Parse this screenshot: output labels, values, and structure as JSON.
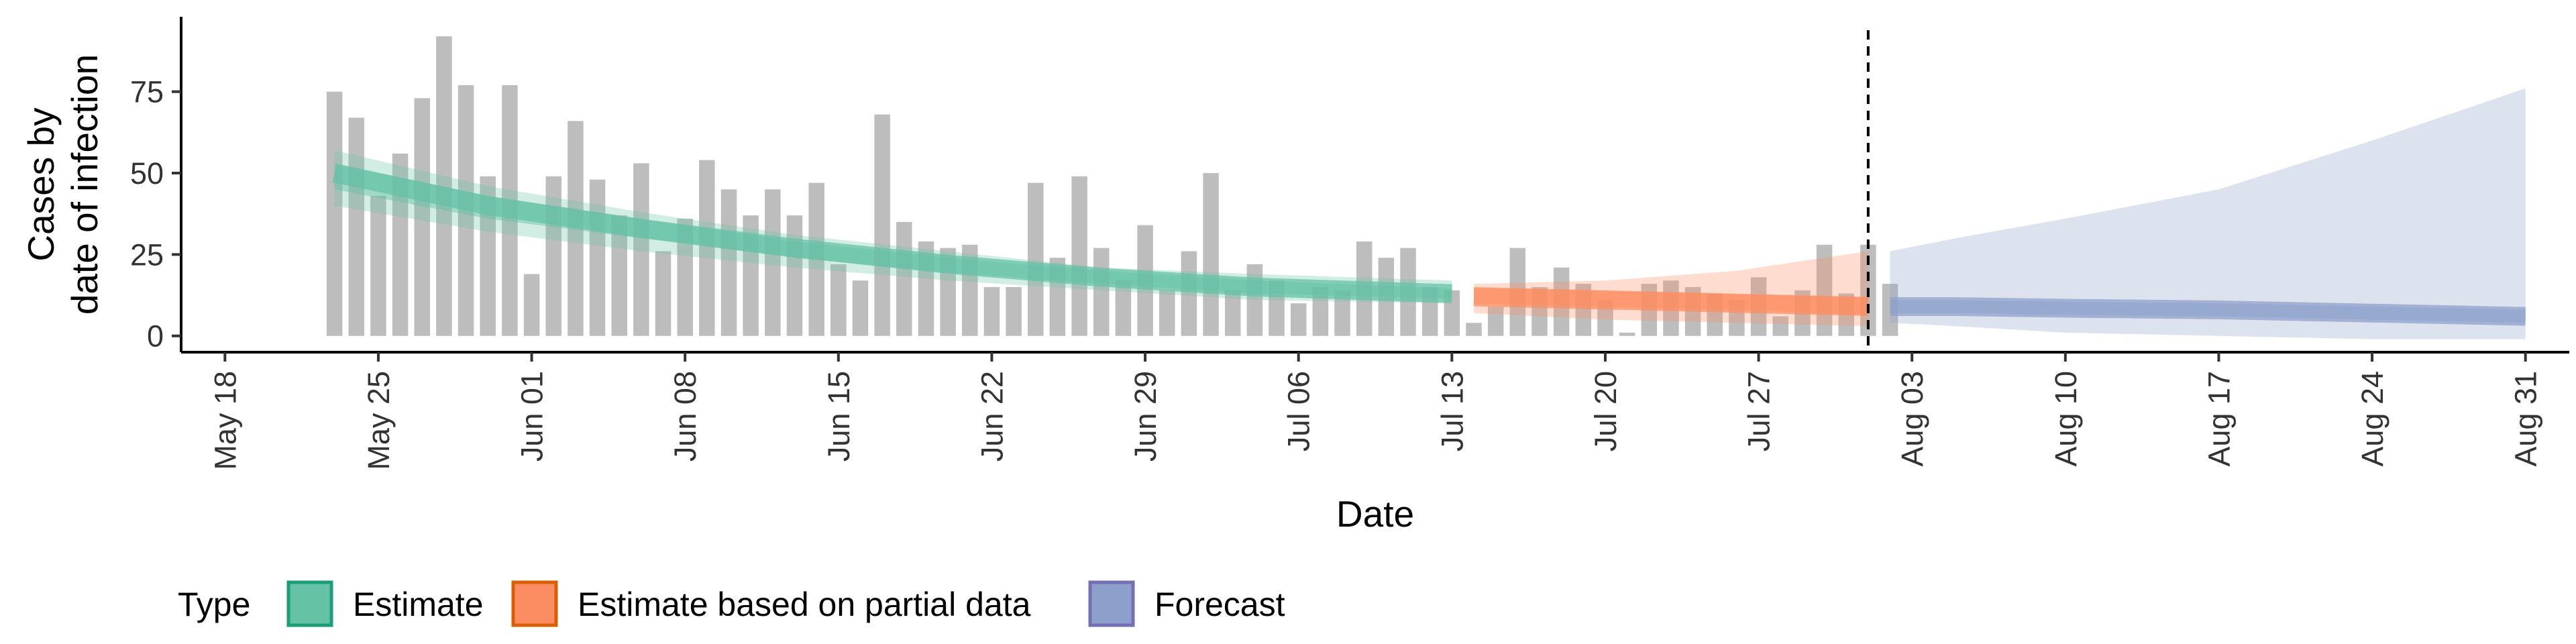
{
  "chart_data": {
    "type": "bar",
    "title": "",
    "xlabel": "Date",
    "ylabel_lines": [
      "Cases by",
      "date of infection"
    ],
    "x_type": "date",
    "xlim": [
      "2020-05-16",
      "2020-09-02"
    ],
    "ylim": [
      -5,
      98
    ],
    "x_ticks": [
      {
        "date": "2020-05-18",
        "label": "May 18"
      },
      {
        "date": "2020-05-25",
        "label": "May 25"
      },
      {
        "date": "2020-06-01",
        "label": "Jun 01"
      },
      {
        "date": "2020-06-08",
        "label": "Jun 08"
      },
      {
        "date": "2020-06-15",
        "label": "Jun 15"
      },
      {
        "date": "2020-06-22",
        "label": "Jun 22"
      },
      {
        "date": "2020-06-29",
        "label": "Jun 29"
      },
      {
        "date": "2020-07-06",
        "label": "Jul 06"
      },
      {
        "date": "2020-07-13",
        "label": "Jul 13"
      },
      {
        "date": "2020-07-20",
        "label": "Jul 20"
      },
      {
        "date": "2020-07-27",
        "label": "Jul 27"
      },
      {
        "date": "2020-08-03",
        "label": "Aug 03"
      },
      {
        "date": "2020-08-10",
        "label": "Aug 10"
      },
      {
        "date": "2020-08-17",
        "label": "Aug 17"
      },
      {
        "date": "2020-08-24",
        "label": "Aug 24"
      },
      {
        "date": "2020-08-31",
        "label": "Aug 31"
      }
    ],
    "y_ticks": [
      0,
      25,
      50,
      75
    ],
    "bars": {
      "start_date": "2020-05-23",
      "color": "#bdbdbd",
      "values": [
        75,
        67,
        43,
        56,
        73,
        92,
        77,
        49,
        77,
        19,
        49,
        66,
        48,
        37,
        53,
        26,
        36,
        54,
        45,
        37,
        45,
        37,
        47,
        22,
        17,
        68,
        35,
        29,
        27,
        28,
        15,
        15,
        47,
        24,
        49,
        27,
        17,
        34,
        14,
        26,
        50,
        14,
        22,
        17,
        10,
        15,
        14,
        29,
        24,
        27,
        15,
        14,
        4,
        9,
        27,
        15,
        21,
        16,
        11,
        1,
        16,
        17,
        15,
        13,
        11,
        18,
        6,
        14,
        28,
        13,
        28,
        16
      ]
    },
    "vline": {
      "date": "2020-08-01",
      "style": "dashed"
    },
    "series": [
      {
        "name": "Estimate",
        "color": "#1b9e77",
        "fill": "#66c2a5",
        "x": [
          "2020-05-23",
          "2020-05-30",
          "2020-06-06",
          "2020-06-13",
          "2020-06-20",
          "2020-06-27",
          "2020-07-04",
          "2020-07-13"
        ],
        "median": [
          50,
          40,
          33,
          27,
          22,
          18,
          15,
          13
        ],
        "lower50": [
          45,
          36,
          30,
          24,
          19.5,
          16,
          13,
          11.5
        ],
        "upper50": [
          53,
          43,
          36,
          29,
          24,
          20,
          17,
          14.5
        ],
        "lower90": [
          40,
          32,
          26,
          21,
          17,
          14,
          11,
          10
        ],
        "upper90": [
          57,
          46,
          38,
          31,
          26,
          21,
          19,
          17
        ]
      },
      {
        "name": "Estimate based on partial data",
        "color": "#d95f02",
        "fill": "#fc8d62",
        "x": [
          "2020-07-14",
          "2020-07-20",
          "2020-07-26",
          "2020-08-01"
        ],
        "median": [
          12,
          11,
          10,
          9
        ],
        "lower50": [
          10,
          9,
          8,
          6.5
        ],
        "upper50": [
          15,
          14,
          13,
          12
        ],
        "lower90": [
          7,
          5,
          4,
          3
        ],
        "upper90": [
          16,
          17,
          20,
          26
        ]
      },
      {
        "name": "Forecast",
        "color": "#7570b3",
        "fill": "#8da0cb",
        "x": [
          "2020-08-02",
          "2020-08-05",
          "2020-08-10",
          "2020-08-17",
          "2020-08-24",
          "2020-08-31"
        ],
        "median": [
          9,
          9,
          8.5,
          8,
          7,
          6
        ],
        "lower50": [
          7,
          7,
          6.5,
          6,
          5,
          4
        ],
        "upper50": [
          11,
          11,
          10.5,
          10,
          9,
          8
        ],
        "lower90": [
          4,
          3,
          1,
          0,
          -1,
          -1
        ],
        "upper90": [
          26,
          30,
          36,
          45,
          60,
          76
        ]
      }
    ],
    "legend": {
      "title": "Type",
      "position": "bottom",
      "items": [
        "Estimate",
        "Estimate based on partial data",
        "Forecast"
      ]
    }
  }
}
